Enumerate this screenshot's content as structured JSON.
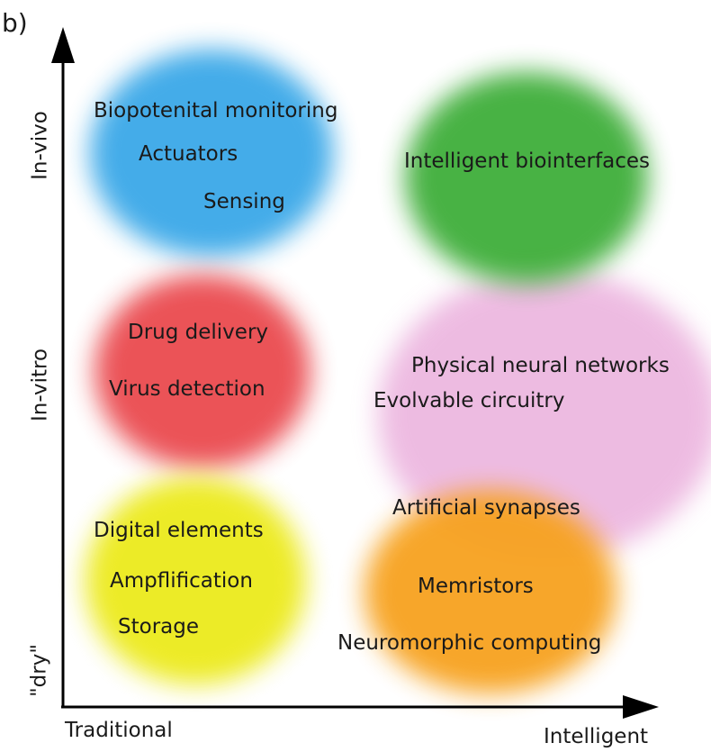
{
  "panel_label": "b)",
  "x_axis": {
    "low": "Traditional",
    "high": "Intelligent"
  },
  "y_axis": {
    "levels": [
      "\"dry\"",
      "In-vitro",
      "In-vivo"
    ]
  },
  "clusters": [
    {
      "id": "in-vivo-traditional",
      "color": "#3aa8e8",
      "items": [
        "Biopotenital monitoring",
        "Actuators",
        "Sensing"
      ]
    },
    {
      "id": "in-vivo-intelligent",
      "color": "#3fae3a",
      "items": [
        "Intelligent biointerfaces"
      ]
    },
    {
      "id": "in-vitro-traditional",
      "color": "#ea4a4f",
      "items": [
        "Drug delivery",
        "Virus detection"
      ]
    },
    {
      "id": "in-vitro-intelligent",
      "color": "#e39ad2",
      "items": [
        "Physical neural networks",
        "Evolvable circuitry",
        "Artificial synapses"
      ]
    },
    {
      "id": "dry-traditional",
      "color": "#ecea1c",
      "items": [
        "Digital elements",
        "Ampflification",
        "Storage"
      ]
    },
    {
      "id": "dry-intelligent",
      "color": "#f7a21f",
      "items": [
        "Memristors",
        "Neuromorphic computing"
      ]
    }
  ]
}
